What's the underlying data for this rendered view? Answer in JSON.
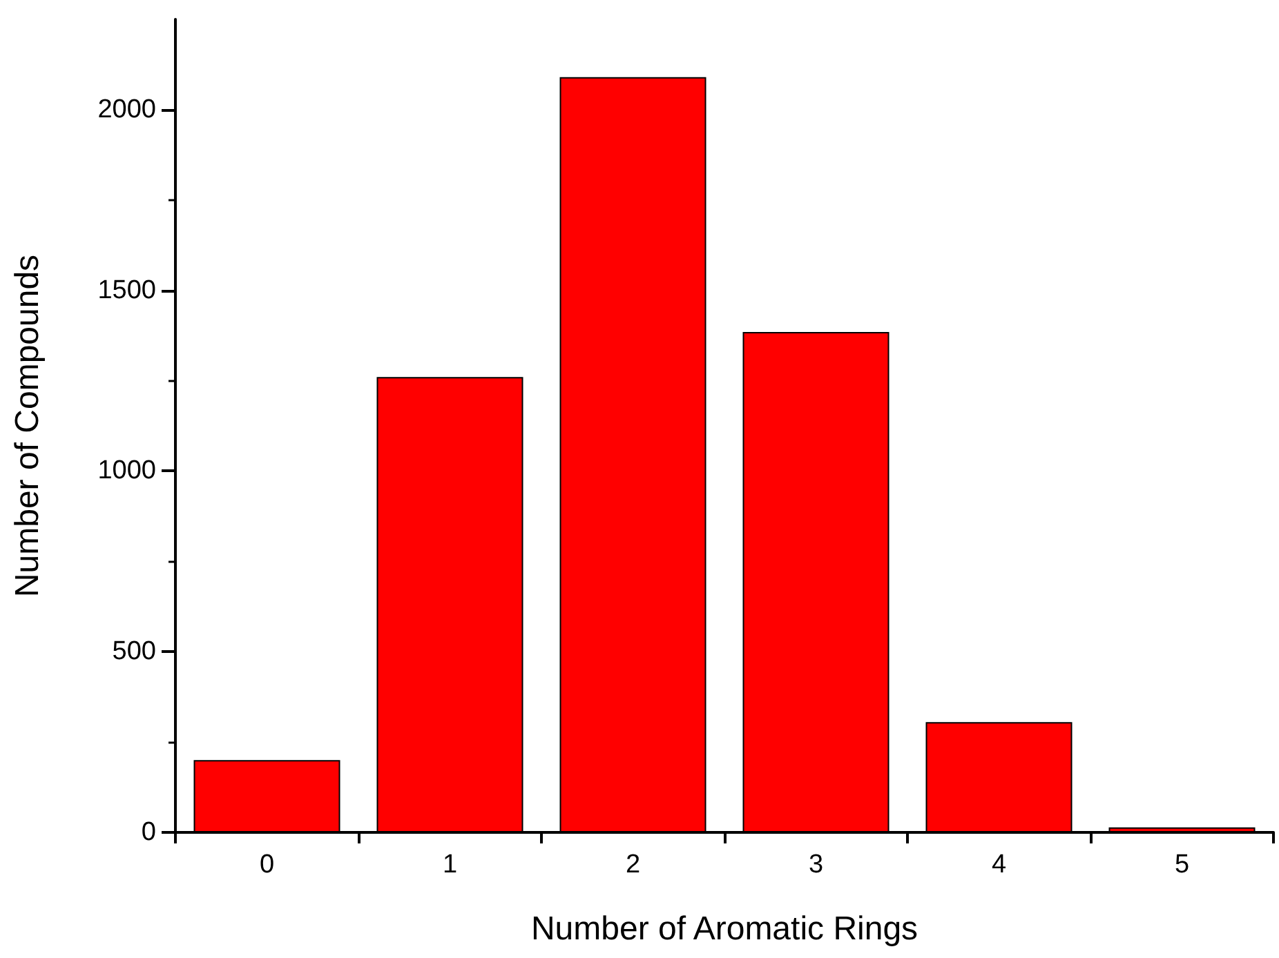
{
  "chart_data": {
    "type": "bar",
    "xlabel": "Number of Aromatic Rings",
    "ylabel": "Number of Compounds",
    "categories": [
      "0",
      "1",
      "2",
      "3",
      "4",
      "5"
    ],
    "values": [
      200,
      1260,
      2090,
      1385,
      305,
      14
    ],
    "color": "#ff0000",
    "ylim": [
      0,
      2250
    ],
    "yticks": [
      0,
      500,
      1000,
      1500,
      2000
    ],
    "grid": false
  }
}
